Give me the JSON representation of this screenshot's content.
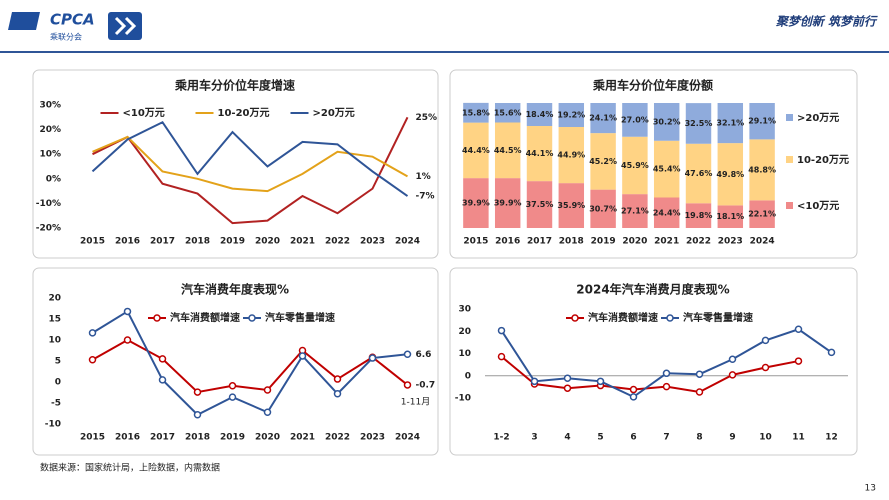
{
  "header": {
    "logo": "CPCA",
    "org": "乘联分会",
    "slogan": "聚梦创新 筑梦前行"
  },
  "chart_data": [
    {
      "type": "line",
      "title": "乘用车分价位年度增速",
      "categories": [
        "2015",
        "2016",
        "2017",
        "2018",
        "2019",
        "2020",
        "2021",
        "2022",
        "2023",
        "2024"
      ],
      "series": [
        {
          "name": "<10万元",
          "color": "#b22222",
          "values": [
            10,
            17,
            -2,
            -6,
            -18,
            -17,
            -7,
            -14,
            -4,
            25
          ],
          "value_labels": [
            null,
            null,
            null,
            null,
            null,
            null,
            null,
            null,
            null,
            "25%"
          ]
        },
        {
          "name": "10-20万元",
          "color": "#e3a21a",
          "values": [
            11,
            17,
            3,
            0,
            -4,
            -5,
            2,
            11,
            9,
            1
          ],
          "value_labels": [
            null,
            null,
            null,
            null,
            null,
            null,
            null,
            null,
            null,
            "1%"
          ]
        },
        {
          "name": ">20万元",
          "color": "#2f5597",
          "values": [
            3,
            16,
            23,
            2,
            19,
            5,
            15,
            14,
            3,
            -7
          ],
          "value_labels": [
            null,
            null,
            null,
            null,
            null,
            null,
            null,
            null,
            null,
            "-7%"
          ]
        }
      ],
      "ylim": [
        -20,
        30
      ],
      "yticks": [
        {
          "value": -20,
          "label": "-20%"
        },
        {
          "value": -10,
          "label": "-10%"
        },
        {
          "value": 0,
          "label": "0%"
        },
        {
          "value": 10,
          "label": "10%"
        },
        {
          "value": 20,
          "label": "20%"
        },
        {
          "value": 30,
          "label": "30%"
        }
      ],
      "markers": false,
      "zero_line": false
    },
    {
      "type": "stacked_bar",
      "title": "乘用车分价位年度份额",
      "categories": [
        "2015",
        "2016",
        "2017",
        "2018",
        "2019",
        "2020",
        "2021",
        "2022",
        "2023",
        "2024"
      ],
      "series": [
        {
          "name": "<10万元",
          "color": "#f08a8a",
          "values": [
            39.9,
            39.9,
            37.5,
            35.9,
            30.7,
            27.1,
            24.4,
            19.8,
            18.1,
            22.1
          ],
          "value_labels": [
            "39.9%",
            "39.9%",
            "37.5%",
            "35.9%",
            "30.7%",
            "27.1%",
            "24.4%",
            "19.8%",
            "18.1%",
            "22.1%"
          ]
        },
        {
          "name": "10-20万元",
          "color": "#ffd384",
          "values": [
            44.4,
            44.5,
            44.1,
            44.9,
            45.2,
            45.9,
            45.4,
            47.6,
            49.8,
            48.8
          ],
          "value_labels": [
            "44.4%",
            "44.5%",
            "44.1%",
            "44.9%",
            "45.2%",
            "45.9%",
            "45.4%",
            "47.6%",
            "49.8%",
            "48.8%"
          ]
        },
        {
          "name": ">20万元",
          "color": "#8fabdc",
          "values": [
            15.8,
            15.6,
            18.4,
            19.2,
            24.1,
            27.0,
            30.2,
            32.5,
            32.1,
            29.1
          ],
          "value_labels": [
            "15.8%",
            "15.6%",
            "18.4%",
            "19.2%",
            "24.1%",
            "27.0%",
            "30.2%",
            "32.5%",
            "32.1%",
            "29.1%"
          ]
        }
      ],
      "ylim": [
        0,
        100
      ]
    },
    {
      "type": "line",
      "title": "汽车消费年度表现%",
      "categories": [
        "2015",
        "2016",
        "2017",
        "2018",
        "2019",
        "2020",
        "2021",
        "2022",
        "2023",
        "2024"
      ],
      "series": [
        {
          "name": "汽车消费额增速",
          "color": "#c00000",
          "values": [
            5.3,
            10,
            5.5,
            -2.4,
            -0.9,
            -1.9,
            7.5,
            0.7,
            5.9,
            -0.7
          ],
          "value_labels": [
            null,
            null,
            null,
            null,
            null,
            null,
            null,
            null,
            null,
            "-0.7"
          ]
        },
        {
          "name": "汽车零售量增速",
          "color": "#2f5597",
          "values": [
            11.7,
            16.8,
            0.5,
            -7.8,
            -3.6,
            -7.2,
            6.2,
            -2.8,
            5.7,
            6.6
          ],
          "value_labels": [
            null,
            null,
            null,
            null,
            null,
            null,
            null,
            null,
            null,
            "6.6"
          ]
        }
      ],
      "annotation": "1-11月",
      "ylim": [
        -10,
        20
      ],
      "yticks": [
        -10,
        -5,
        0,
        5,
        10,
        15,
        20
      ],
      "markers": true,
      "zero_line": false
    },
    {
      "type": "line",
      "title": "2024年汽车消费月度表现%",
      "categories": [
        "1-2",
        "3",
        "4",
        "5",
        "6",
        "7",
        "8",
        "9",
        "10",
        "11",
        "12"
      ],
      "series": [
        {
          "name": "汽车消费额增速",
          "color": "#c00000",
          "values": [
            8.6,
            -3.7,
            -5.6,
            -4.4,
            -6.2,
            -4.9,
            -7.3,
            0.4,
            3.7,
            6.6,
            null
          ]
        },
        {
          "name": "汽车零售量增速",
          "color": "#2f5597",
          "values": [
            20.3,
            -2.5,
            -1.1,
            -2.5,
            -9.5,
            1.1,
            0.7,
            7.4,
            15.9,
            20.9,
            10.5
          ]
        }
      ],
      "ylim": [
        -10,
        30
      ],
      "yticks": [
        -10,
        0,
        10,
        20,
        30
      ],
      "markers": true,
      "zero_line": true
    }
  ],
  "footer": {
    "source": "数据来源：国家统计局，上险数据，内需数据",
    "page": "13"
  }
}
